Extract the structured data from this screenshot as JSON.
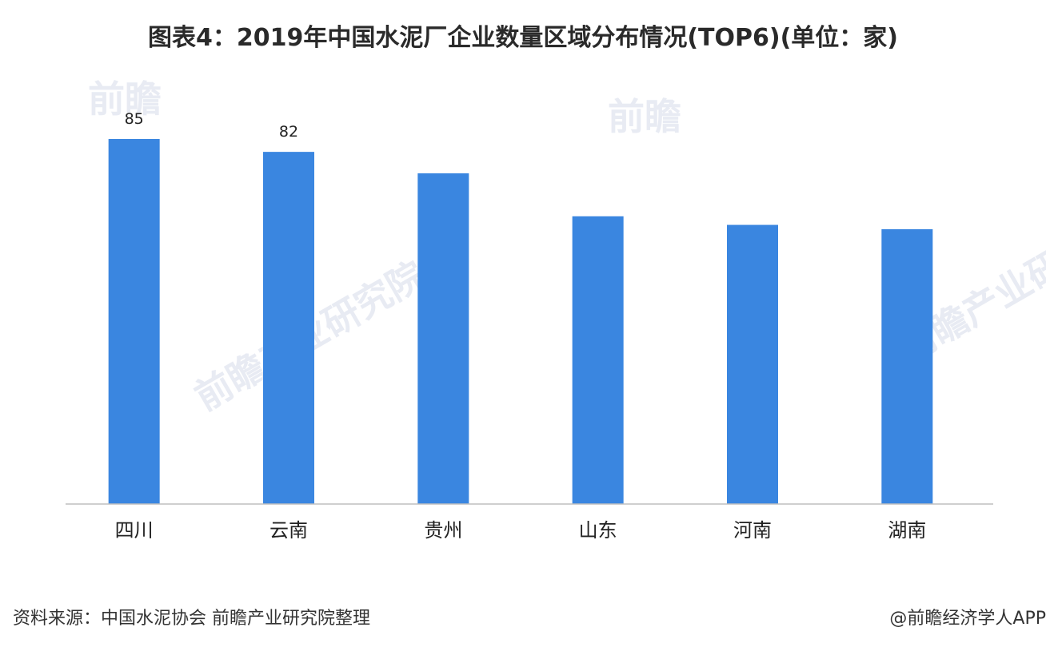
{
  "chart_data": {
    "type": "bar",
    "title": "图表4：2019年中国水泥厂企业数量区域分布情况(TOP6)(单位：家)",
    "categories": [
      "四川",
      "云南",
      "贵州",
      "山东",
      "河南",
      "湖南"
    ],
    "values": [
      85,
      82,
      77,
      67,
      65,
      64
    ],
    "data_labels": [
      "85",
      "82",
      "",
      "",
      "",
      ""
    ],
    "xlabel": "",
    "ylabel": "",
    "ylim": [
      0,
      85
    ],
    "grid": false,
    "legend": "none",
    "bar_color": "#3a86e0"
  },
  "source": "资料来源：中国水泥协会 前瞻产业研究院整理",
  "credit": "@前瞻经济学人APP",
  "watermark": {
    "brand": "前瞻",
    "brand_full": "前瞻产业研究院"
  },
  "colors": {
    "bar": "#3a86e0",
    "axis": "#bfbfbf",
    "text": "#222222"
  }
}
